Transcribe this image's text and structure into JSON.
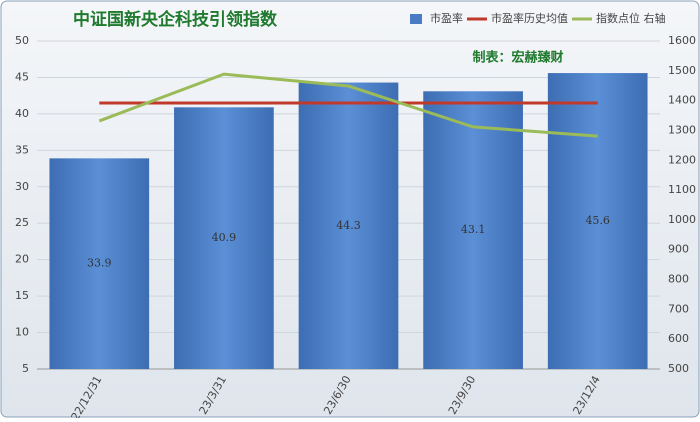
{
  "chart_data": {
    "type": "bar",
    "title": "中证国新央企科技引领指数",
    "annotation": "制表：宏赫臻财",
    "categories": [
      "22/12/31",
      "23/3/31",
      "23/6/30",
      "23/9/30",
      "23/12/4"
    ],
    "series": [
      {
        "name": "市盈率",
        "color": "#4a7cc4",
        "type": "bar",
        "values": [
          33.9,
          40.9,
          44.3,
          43.1,
          45.6
        ]
      },
      {
        "name": "市盈率历史均值",
        "color": "#c0392b",
        "type": "line",
        "values": [
          41.5,
          41.5,
          41.5,
          41.5,
          41.5
        ]
      },
      {
        "name": "指数点位 右轴",
        "color": "#9bbb59",
        "type": "line",
        "axis": "y2",
        "values": [
          1332,
          1489,
          1449,
          1312,
          1281
        ]
      }
    ],
    "ylim": [
      5,
      50
    ],
    "yticks": [
      5,
      10,
      15,
      20,
      25,
      30,
      35,
      40,
      45,
      50
    ],
    "y2lim": [
      500,
      1600
    ],
    "y2ticks": [
      500,
      600,
      700,
      800,
      900,
      1000,
      1100,
      1200,
      1300,
      1400,
      1500,
      1600
    ],
    "grid": true
  }
}
